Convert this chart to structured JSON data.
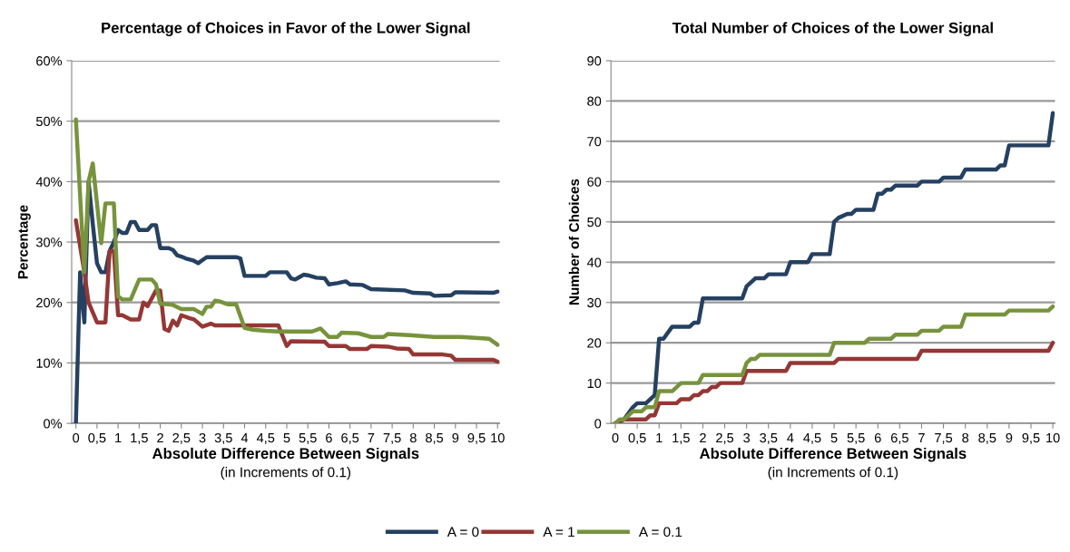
{
  "chart_data": [
    {
      "type": "line",
      "title": "Percentage of Choices in Favor of the Lower Signal",
      "xlabel": "Absolute Difference Between Signals",
      "ylabel": "Percentage",
      "annotations": [
        "(in Increments of 0.1)"
      ],
      "xlim": [
        -0.1,
        10.05
      ],
      "xticks": [
        0,
        {
          "value": 0.5,
          "label": "0,5"
        },
        1,
        {
          "value": 1.5,
          "label": "1,5"
        },
        2,
        {
          "value": 2.5,
          "label": "2,5"
        },
        3,
        {
          "value": 3.5,
          "label": "3,5"
        },
        4,
        {
          "value": 4.5,
          "label": "4,5"
        },
        5,
        {
          "value": 5.5,
          "label": "5,5"
        },
        6,
        {
          "value": 6.5,
          "label": "6,5"
        },
        7,
        {
          "value": 7.5,
          "label": "7,5"
        },
        8,
        {
          "value": 8.5,
          "label": "8,5"
        },
        9,
        {
          "value": 9.5,
          "label": "9,5"
        },
        10
      ],
      "ylim": [
        0,
        60
      ],
      "yticks": [
        {
          "value": 0,
          "label": "0%"
        },
        {
          "value": 10,
          "label": "10%"
        },
        {
          "value": 20,
          "label": "20%"
        },
        {
          "value": 30,
          "label": "30%"
        },
        {
          "value": 40,
          "label": "40%"
        },
        {
          "value": 50,
          "label": "50%"
        },
        {
          "value": 60,
          "label": "60%"
        }
      ],
      "grid": "y",
      "legend": "bottom",
      "line_style": "solid",
      "marker": "none",
      "series": [
        {
          "name": "A = 0",
          "color": "#254061",
          "x": [
            0,
            0.1,
            0.2,
            0.3,
            0.4,
            0.5,
            0.6,
            0.7,
            0.8,
            0.9,
            1.0,
            1.1,
            1.2,
            1.3,
            1.4,
            1.5,
            1.7,
            1.8,
            1.9,
            2.0,
            2.2,
            2.3,
            2.4,
            2.5,
            2.6,
            2.7,
            2.8,
            2.9,
            3.0,
            3.1,
            3.8,
            3.9,
            4.0,
            4.5,
            4.6,
            5.0,
            5.1,
            5.2,
            5.3,
            5.4,
            5.5,
            5.7,
            5.9,
            6.0,
            6.2,
            6.4,
            6.5,
            6.8,
            7.0,
            7.8,
            8.0,
            8.4,
            8.5,
            8.9,
            9.0,
            9.9,
            10.0
          ],
          "values": [
            0,
            25,
            16.7,
            40,
            33,
            26.5,
            25,
            25,
            28.5,
            30,
            32,
            31.5,
            31.5,
            33.3,
            33.3,
            32,
            32,
            32.8,
            32.8,
            29,
            29,
            28.7,
            27.8,
            27.6,
            27.3,
            27.1,
            26.9,
            26.5,
            27,
            27.5,
            27.5,
            27.3,
            24.4,
            24.4,
            25,
            25,
            24,
            23.8,
            24.2,
            24.6,
            24.5,
            24.1,
            24,
            23,
            23.2,
            23.5,
            23,
            22.9,
            22.2,
            22,
            21.6,
            21.5,
            21.1,
            21.2,
            21.7,
            21.6,
            21.8
          ]
        },
        {
          "name": "A = 1",
          "color": "#953735",
          "x": [
            0,
            0.2,
            0.3,
            0.5,
            0.7,
            0.8,
            0.9,
            1.0,
            1.1,
            1.3,
            1.5,
            1.6,
            1.7,
            1.9,
            2.0,
            2.1,
            2.2,
            2.3,
            2.4,
            2.5,
            2.7,
            2.8,
            3.0,
            3.2,
            3.3,
            4.8,
            5.0,
            5.1,
            5.9,
            6.0,
            6.4,
            6.5,
            6.9,
            7.0,
            7.4,
            7.6,
            7.9,
            8.0,
            8.7,
            8.9,
            9.0,
            9.9,
            10.0
          ],
          "values": [
            33.6,
            25,
            20,
            16.7,
            16.7,
            28.5,
            28.5,
            17.9,
            17.9,
            17.2,
            17.2,
            20,
            19.4,
            22,
            22,
            15.6,
            15.3,
            17,
            16.2,
            17.9,
            17.4,
            17.2,
            16,
            16.5,
            16.2,
            16.2,
            12.8,
            13.6,
            13.5,
            12.8,
            12.8,
            12.3,
            12.3,
            12.8,
            12.7,
            12.4,
            12.3,
            11.4,
            11.4,
            11.2,
            10.5,
            10.5,
            10.2
          ]
        },
        {
          "name": "A = 0.1",
          "color": "#77933c",
          "x": [
            0,
            0.2,
            0.3,
            0.4,
            0.6,
            0.7,
            0.9,
            1.0,
            1.1,
            1.3,
            1.5,
            1.8,
            1.9,
            2.0,
            2.3,
            2.5,
            2.8,
            3.0,
            3.1,
            3.2,
            3.3,
            3.4,
            3.6,
            3.8,
            4.0,
            4.2,
            4.5,
            4.8,
            5.6,
            5.8,
            6.0,
            6.2,
            6.3,
            6.7,
            7.0,
            7.3,
            7.4,
            7.9,
            8.5,
            9.1,
            9.8,
            10.0
          ],
          "values": [
            50.3,
            25,
            40,
            43,
            29.8,
            36.4,
            36.4,
            21,
            20.5,
            20.5,
            23.8,
            23.8,
            23,
            19.8,
            19.6,
            18.9,
            18.9,
            18.1,
            19.3,
            19.3,
            20.3,
            20.2,
            19.7,
            19.7,
            15.8,
            15.5,
            15.3,
            15.2,
            15.2,
            15.7,
            14.3,
            14.3,
            15,
            14.9,
            14.3,
            14.3,
            14.8,
            14.6,
            14.3,
            14.3,
            14,
            13
          ]
        }
      ]
    },
    {
      "type": "line",
      "title": "Total Number of Choices of the Lower Signal",
      "xlabel": "Absolute Difference Between Signals",
      "ylabel": "Number of Choices",
      "annotations": [
        "(in Increments of 0.1)"
      ],
      "xlim": [
        -0.1,
        10.05
      ],
      "xticks": [
        0,
        {
          "value": 0.5,
          "label": "0,5"
        },
        1,
        {
          "value": 1.5,
          "label": "1,5"
        },
        2,
        {
          "value": 2.5,
          "label": "2,5"
        },
        3,
        {
          "value": 3.5,
          "label": "3,5"
        },
        4,
        {
          "value": 4.5,
          "label": "4,5"
        },
        5,
        {
          "value": 5.5,
          "label": "5,5"
        },
        6,
        {
          "value": 6.5,
          "label": "6,5"
        },
        7,
        {
          "value": 7.5,
          "label": "7,5"
        },
        8,
        {
          "value": 8.5,
          "label": "8,5"
        },
        9,
        {
          "value": 9.5,
          "label": "9,5"
        },
        10
      ],
      "ylim": [
        0,
        90
      ],
      "yticks": [
        0,
        10,
        20,
        30,
        40,
        50,
        60,
        70,
        80,
        90
      ],
      "grid": "y",
      "line_style": "solid",
      "marker": "none",
      "series": [
        {
          "color": "#254061",
          "x": [
            0,
            0.2,
            0.4,
            0.5,
            0.7,
            0.9,
            1.0,
            1.1,
            1.3,
            1.7,
            1.8,
            1.9,
            2.0,
            2.9,
            3.0,
            3.2,
            3.4,
            3.5,
            3.9,
            4.0,
            4.4,
            4.5,
            4.9,
            5.0,
            5.1,
            5.3,
            5.4,
            5.5,
            5.9,
            6.0,
            6.1,
            6.2,
            6.3,
            6.4,
            6.9,
            7.0,
            7.4,
            7.5,
            7.9,
            8.0,
            8.7,
            8.8,
            8.9,
            9.0,
            9.9,
            10.0
          ],
          "values": [
            0,
            1,
            4,
            5,
            5,
            7,
            21,
            21,
            24,
            24,
            25,
            25,
            31,
            31,
            34,
            36,
            36,
            37,
            37,
            40,
            40,
            42,
            42,
            50,
            51,
            52,
            52,
            53,
            53,
            57,
            57,
            58,
            58,
            59,
            59,
            60,
            60,
            61,
            61,
            63,
            63,
            64,
            64,
            69,
            69,
            77
          ]
        },
        {
          "color": "#953735",
          "x": [
            0,
            0.2,
            0.7,
            0.8,
            0.9,
            1.0,
            1.4,
            1.5,
            1.7,
            1.8,
            1.9,
            2.0,
            2.1,
            2.2,
            2.3,
            2.4,
            2.9,
            3.0,
            3.9,
            4.0,
            5.0,
            5.1,
            6.9,
            7.0,
            9.9,
            10.0
          ],
          "values": [
            0,
            1,
            1,
            2,
            2,
            5,
            5,
            6,
            6,
            7,
            7,
            8,
            8,
            9,
            9,
            10,
            10,
            13,
            13,
            15,
            15,
            16,
            16,
            18,
            18,
            20
          ]
        },
        {
          "color": "#77933c",
          "x": [
            0,
            0.1,
            0.2,
            0.4,
            0.6,
            0.7,
            0.9,
            1.0,
            1.3,
            1.5,
            1.9,
            2.0,
            2.9,
            3.0,
            3.1,
            3.2,
            3.3,
            4.9,
            5.0,
            5.7,
            5.8,
            6.3,
            6.4,
            6.9,
            7.0,
            7.4,
            7.5,
            7.9,
            8.0,
            8.9,
            9.0,
            9.9,
            10.0
          ],
          "values": [
            0,
            1,
            1,
            3,
            3,
            4,
            4,
            8,
            8,
            10,
            10,
            12,
            12,
            15,
            16,
            16,
            17,
            17,
            20,
            20,
            21,
            21,
            22,
            22,
            23,
            23,
            24,
            24,
            27,
            27,
            28,
            28,
            29
          ]
        }
      ]
    }
  ]
}
